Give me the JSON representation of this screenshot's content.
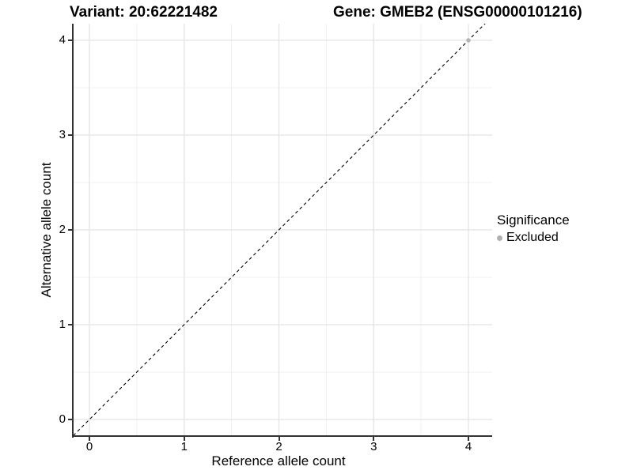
{
  "figure": {
    "title_left": "Variant: 20:62221482",
    "title_right": "Gene: GMEB2 (ENSG00000101216)"
  },
  "chart_data": {
    "type": "scatter",
    "title": "Variant: 20:62221482  /  Gene: GMEB2 (ENSG00000101216)",
    "xlabel": "Reference allele count",
    "ylabel": "Alternative allele count",
    "xlim": [
      -0.17,
      4.25
    ],
    "ylim": [
      -0.18,
      4.18
    ],
    "xticks": [
      0,
      1,
      2,
      3,
      4
    ],
    "yticks": [
      0,
      1,
      2,
      3,
      4
    ],
    "grid": {
      "visible": true,
      "major_step": 1,
      "minor_step": 0.5
    },
    "points": [
      {
        "x": 4,
        "y": 4,
        "series": "Excluded"
      }
    ],
    "reference_line": {
      "kind": "identity y=x",
      "style": "dashed",
      "color": "#000000"
    },
    "legend": {
      "title": "Significance",
      "position": "right",
      "entries": [
        {
          "label": "Excluded",
          "color": "#b0b0b0",
          "marker": "circle"
        }
      ]
    }
  },
  "style": {
    "grid_major_color": "#e4e4e4",
    "grid_minor_color": "#f1f1f1",
    "axis_line_color": "#333333",
    "point_color": "#b5b5b5",
    "background": "#ffffff"
  }
}
